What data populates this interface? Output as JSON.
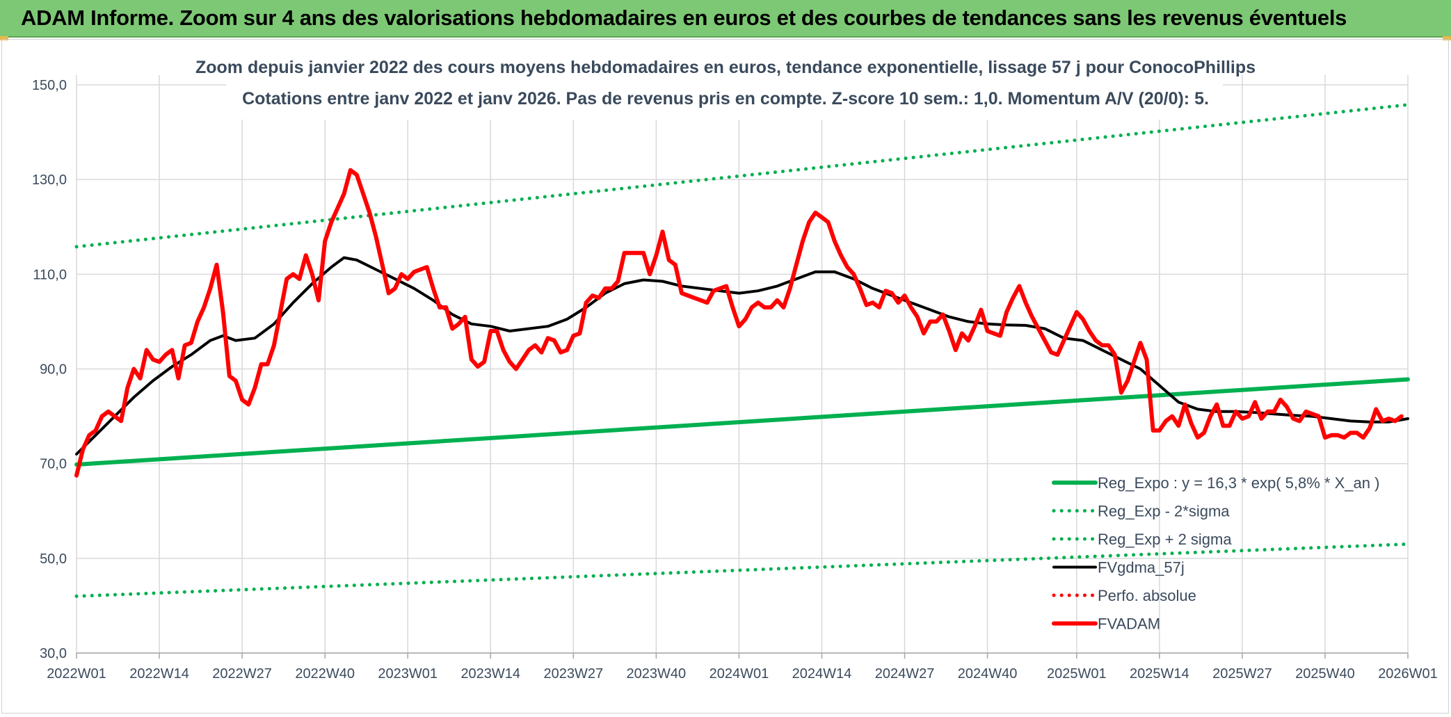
{
  "header": {
    "title": "ADAM Informe. Zoom sur 4 ans des valorisations hebdomadaires en euros et des courbes de tendances sans les revenus éventuels"
  },
  "colors": {
    "header_bg": "#7dc875",
    "trend_green": "#00b050",
    "ma_black": "#000000",
    "price_red": "#ff0000",
    "grid": "#d9d9d9",
    "axis_text": "#3a4a5c"
  },
  "chart_data": {
    "type": "line",
    "title": "Zoom depuis janvier 2022 des cours moyens hebdomadaires en euros, tendance exponentielle, lissage 57 j pour ConocoPhillips",
    "subtitle": "Cotations entre janv 2022 et janv 2026. Pas de revenus pris en compte. Z-score 10 sem.: 1,0. Momentum A/V (20/0): 5.",
    "x_unit": "week index (0 = 2022W01, 13 = 2022W14, 209 = 2026W01)",
    "x_ticks": [
      {
        "label": "2022W01",
        "x": 0
      },
      {
        "label": "2022W14",
        "x": 13
      },
      {
        "label": "2022W27",
        "x": 26
      },
      {
        "label": "2022W40",
        "x": 39
      },
      {
        "label": "2023W01",
        "x": 52
      },
      {
        "label": "2023W14",
        "x": 65
      },
      {
        "label": "2023W27",
        "x": 78
      },
      {
        "label": "2023W40",
        "x": 91
      },
      {
        "label": "2024W01",
        "x": 104
      },
      {
        "label": "2024W14",
        "x": 117
      },
      {
        "label": "2024W27",
        "x": 130
      },
      {
        "label": "2024W40",
        "x": 143
      },
      {
        "label": "2025W01",
        "x": 157
      },
      {
        "label": "2025W14",
        "x": 170
      },
      {
        "label": "2025W27",
        "x": 183
      },
      {
        "label": "2025W40",
        "x": 196
      },
      {
        "label": "2026W01",
        "x": 209
      }
    ],
    "y_ticks": [
      "30,0",
      "50,0",
      "70,0",
      "90,0",
      "110,0",
      "130,0",
      "150,0"
    ],
    "ylim": [
      30,
      150
    ],
    "xlim": [
      0,
      209
    ],
    "grid": true,
    "legend_position": "bottom-right",
    "series": [
      {
        "name": "Reg_Expo : y = 16,3 * exp( 5,8% *  X_an )",
        "style": "solid-thick",
        "color": "#00b050",
        "points": [
          [
            0,
            69.8
          ],
          [
            209,
            87.8
          ]
        ]
      },
      {
        "name": "Reg_Exp - 2*sigma",
        "style": "dotted",
        "color": "#00b050",
        "points": [
          [
            0,
            42.0
          ],
          [
            209,
            53.0
          ]
        ]
      },
      {
        "name": "Reg_Exp + 2 sigma",
        "style": "dotted",
        "color": "#00b050",
        "points": [
          [
            0,
            115.8
          ],
          [
            209,
            145.8
          ]
        ]
      },
      {
        "name": "FVgdma_57j",
        "style": "solid",
        "color": "#000000",
        "points": [
          [
            0,
            72
          ],
          [
            3,
            76
          ],
          [
            6,
            80
          ],
          [
            9,
            84
          ],
          [
            12,
            87.5
          ],
          [
            15,
            90.5
          ],
          [
            18,
            93
          ],
          [
            21,
            96
          ],
          [
            23,
            97
          ],
          [
            25,
            96
          ],
          [
            28,
            96.5
          ],
          [
            31,
            99.5
          ],
          [
            34,
            104
          ],
          [
            37,
            108
          ],
          [
            40,
            111.5
          ],
          [
            42,
            113.5
          ],
          [
            44,
            113
          ],
          [
            47,
            111
          ],
          [
            50,
            109
          ],
          [
            53,
            107
          ],
          [
            56,
            104.5
          ],
          [
            59,
            101.5
          ],
          [
            62,
            99.5
          ],
          [
            65,
            99
          ],
          [
            68,
            98
          ],
          [
            71,
            98.5
          ],
          [
            74,
            99
          ],
          [
            77,
            100.5
          ],
          [
            80,
            103
          ],
          [
            83,
            106
          ],
          [
            86,
            108
          ],
          [
            89,
            108.8
          ],
          [
            92,
            108.5
          ],
          [
            95,
            107.5
          ],
          [
            98,
            107
          ],
          [
            101,
            106.5
          ],
          [
            104,
            106
          ],
          [
            107,
            106.5
          ],
          [
            110,
            107.5
          ],
          [
            113,
            109
          ],
          [
            116,
            110.5
          ],
          [
            119,
            110.5
          ],
          [
            122,
            109
          ],
          [
            125,
            107
          ],
          [
            128,
            105.5
          ],
          [
            131,
            104
          ],
          [
            134,
            102.5
          ],
          [
            137,
            101
          ],
          [
            140,
            100
          ],
          [
            143,
            99.5
          ],
          [
            146,
            99.3
          ],
          [
            149,
            99.2
          ],
          [
            152,
            98.5
          ],
          [
            155,
            96.5
          ],
          [
            158,
            96
          ],
          [
            161,
            94
          ],
          [
            164,
            92
          ],
          [
            167,
            90
          ],
          [
            170,
            86.5
          ],
          [
            173,
            83
          ],
          [
            176,
            81.5
          ],
          [
            179,
            81
          ],
          [
            182,
            81
          ],
          [
            185,
            80.8
          ],
          [
            188,
            80.5
          ],
          [
            191,
            80.2
          ],
          [
            194,
            80
          ],
          [
            197,
            79.5
          ],
          [
            200,
            79
          ],
          [
            203,
            78.8
          ],
          [
            206,
            78.8
          ],
          [
            209,
            79.5
          ]
        ]
      },
      {
        "name": "Perfo. absolue",
        "style": "dotted",
        "color": "#ff0000",
        "points": []
      },
      {
        "name": "FVADAM",
        "style": "solid-thick",
        "color": "#ff0000",
        "points": [
          [
            0,
            67.5
          ],
          [
            1,
            73
          ],
          [
            2,
            76
          ],
          [
            3,
            77
          ],
          [
            4,
            80
          ],
          [
            5,
            81
          ],
          [
            6,
            80
          ],
          [
            7,
            79
          ],
          [
            8,
            86
          ],
          [
            9,
            90
          ],
          [
            10,
            88
          ],
          [
            11,
            94
          ],
          [
            12,
            92
          ],
          [
            13,
            91.5
          ],
          [
            14,
            93
          ],
          [
            15,
            94
          ],
          [
            16,
            88
          ],
          [
            17,
            95
          ],
          [
            18,
            95.5
          ],
          [
            19,
            100
          ],
          [
            20,
            103
          ],
          [
            21,
            107
          ],
          [
            22,
            112
          ],
          [
            23,
            102
          ],
          [
            24,
            88.5
          ],
          [
            25,
            87.5
          ],
          [
            26,
            83.5
          ],
          [
            27,
            82.5
          ],
          [
            28,
            86
          ],
          [
            29,
            91
          ],
          [
            30,
            91
          ],
          [
            31,
            95
          ],
          [
            32,
            102
          ],
          [
            33,
            109
          ],
          [
            34,
            110
          ],
          [
            35,
            109
          ],
          [
            36,
            114
          ],
          [
            37,
            110
          ],
          [
            38,
            104.5
          ],
          [
            39,
            117
          ],
          [
            40,
            121
          ],
          [
            41,
            124
          ],
          [
            42,
            127
          ],
          [
            43,
            132
          ],
          [
            44,
            131
          ],
          [
            45,
            127
          ],
          [
            46,
            123
          ],
          [
            47,
            118
          ],
          [
            48,
            112
          ],
          [
            49,
            106
          ],
          [
            50,
            107
          ],
          [
            51,
            110
          ],
          [
            52,
            109
          ],
          [
            53,
            110.5
          ],
          [
            54,
            111
          ],
          [
            55,
            111.5
          ],
          [
            56,
            107
          ],
          [
            57,
            103
          ],
          [
            58,
            103
          ],
          [
            59,
            98.5
          ],
          [
            60,
            99.5
          ],
          [
            61,
            101
          ],
          [
            62,
            92
          ],
          [
            63,
            90.5
          ],
          [
            64,
            91.5
          ],
          [
            65,
            98
          ],
          [
            66,
            98
          ],
          [
            67,
            94
          ],
          [
            68,
            91.5
          ],
          [
            69,
            90
          ],
          [
            70,
            92
          ],
          [
            71,
            94
          ],
          [
            72,
            95
          ],
          [
            73,
            93.5
          ],
          [
            74,
            96.5
          ],
          [
            75,
            96
          ],
          [
            76,
            93.5
          ],
          [
            77,
            94
          ],
          [
            78,
            97
          ],
          [
            79,
            97.5
          ],
          [
            80,
            104
          ],
          [
            81,
            105.5
          ],
          [
            82,
            105
          ],
          [
            83,
            107
          ],
          [
            84,
            107
          ],
          [
            85,
            108.5
          ],
          [
            86,
            114.5
          ],
          [
            87,
            114.5
          ],
          [
            88,
            114.5
          ],
          [
            89,
            114.5
          ],
          [
            90,
            110
          ],
          [
            91,
            114
          ],
          [
            92,
            119
          ],
          [
            93,
            113
          ],
          [
            94,
            112
          ],
          [
            95,
            106
          ],
          [
            96,
            105.5
          ],
          [
            97,
            105
          ],
          [
            98,
            104.5
          ],
          [
            99,
            104
          ],
          [
            100,
            106.5
          ],
          [
            101,
            107
          ],
          [
            102,
            107.5
          ],
          [
            103,
            103
          ],
          [
            104,
            99
          ],
          [
            105,
            100.5
          ],
          [
            106,
            103
          ],
          [
            107,
            104
          ],
          [
            108,
            103
          ],
          [
            109,
            103
          ],
          [
            110,
            104.5
          ],
          [
            111,
            103
          ],
          [
            112,
            107
          ],
          [
            113,
            112
          ],
          [
            114,
            117
          ],
          [
            115,
            121
          ],
          [
            116,
            123
          ],
          [
            117,
            122
          ],
          [
            118,
            121
          ],
          [
            119,
            117
          ],
          [
            120,
            114
          ],
          [
            121,
            111.5
          ],
          [
            122,
            110
          ],
          [
            123,
            107
          ],
          [
            124,
            103.5
          ],
          [
            125,
            104
          ],
          [
            126,
            103
          ],
          [
            127,
            106.5
          ],
          [
            128,
            106
          ],
          [
            129,
            104
          ],
          [
            130,
            105.5
          ],
          [
            131,
            103
          ],
          [
            132,
            101
          ],
          [
            133,
            97.5
          ],
          [
            134,
            100
          ],
          [
            135,
            100
          ],
          [
            136,
            101.5
          ],
          [
            137,
            98
          ],
          [
            138,
            94
          ],
          [
            139,
            97.5
          ],
          [
            140,
            96
          ],
          [
            141,
            99
          ],
          [
            142,
            102.5
          ],
          [
            143,
            98
          ],
          [
            144,
            97.5
          ],
          [
            145,
            97
          ],
          [
            146,
            102
          ],
          [
            147,
            105
          ],
          [
            148,
            107.5
          ],
          [
            149,
            104
          ],
          [
            150,
            101
          ],
          [
            151,
            98.5
          ],
          [
            152,
            96
          ],
          [
            153,
            93.5
          ],
          [
            154,
            93
          ],
          [
            155,
            96
          ],
          [
            156,
            99
          ],
          [
            157,
            102
          ],
          [
            158,
            100.5
          ],
          [
            159,
            98
          ],
          [
            160,
            96
          ],
          [
            161,
            95
          ],
          [
            162,
            95
          ],
          [
            163,
            93
          ],
          [
            164,
            85
          ],
          [
            165,
            87.5
          ],
          [
            166,
            91.5
          ],
          [
            167,
            95.5
          ],
          [
            168,
            92
          ],
          [
            169,
            77
          ],
          [
            170,
            77
          ],
          [
            171,
            79
          ],
          [
            172,
            80
          ],
          [
            173,
            78
          ],
          [
            174,
            82.5
          ],
          [
            175,
            78.5
          ],
          [
            176,
            75.5
          ],
          [
            177,
            76.5
          ],
          [
            178,
            80
          ],
          [
            179,
            82.5
          ],
          [
            180,
            78
          ],
          [
            181,
            78
          ],
          [
            182,
            81
          ],
          [
            183,
            79.5
          ],
          [
            184,
            80
          ],
          [
            185,
            83
          ],
          [
            186,
            79.5
          ],
          [
            187,
            81
          ],
          [
            188,
            81
          ],
          [
            189,
            83.5
          ],
          [
            190,
            82
          ],
          [
            191,
            79.5
          ],
          [
            192,
            79
          ],
          [
            193,
            81
          ],
          [
            194,
            80.5
          ],
          [
            195,
            80
          ],
          [
            196,
            75.5
          ],
          [
            197,
            76
          ],
          [
            198,
            76
          ],
          [
            199,
            75.5
          ],
          [
            200,
            76.5
          ],
          [
            201,
            76.5
          ],
          [
            202,
            75.5
          ],
          [
            203,
            77.5
          ],
          [
            204,
            81.5
          ],
          [
            205,
            79
          ],
          [
            206,
            79.5
          ],
          [
            207,
            79
          ],
          [
            208,
            80
          ]
        ]
      }
    ]
  }
}
